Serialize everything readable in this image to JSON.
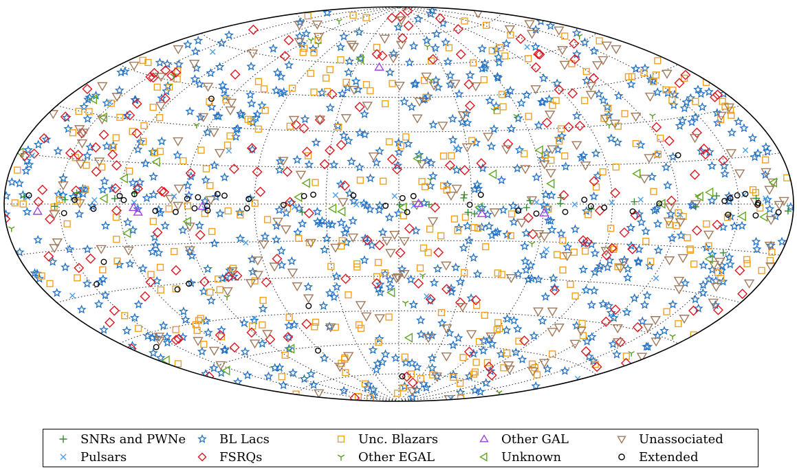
{
  "chart_data": {
    "type": "scatter",
    "projection": "hammer-aitoff all-sky map",
    "title": "",
    "grid": true,
    "legend": "bottom",
    "series": [
      {
        "key": "snr",
        "name": "SNRs and PWNe",
        "marker": "plus",
        "color": "#2e8b2e"
      },
      {
        "key": "psr",
        "name": "Pulsars",
        "marker": "x",
        "color": "#4a9fe8"
      },
      {
        "key": "bll",
        "name": "BL Lacs",
        "marker": "star",
        "color": "#1f6fc4"
      },
      {
        "key": "fsrq",
        "name": "FSRQs",
        "marker": "diamond",
        "color": "#e0141e"
      },
      {
        "key": "bcu",
        "name": "Unc. Blazars",
        "marker": "square",
        "color": "#f0a020"
      },
      {
        "key": "oegal",
        "name": "Other EGAL",
        "marker": "tri-y",
        "color": "#5a9a20"
      },
      {
        "key": "ogal",
        "name": "Other GAL",
        "marker": "triangle-up",
        "color": "#a040e0"
      },
      {
        "key": "unk",
        "name": "Unknown",
        "marker": "triangle-left",
        "color": "#60a820"
      },
      {
        "key": "unas",
        "name": "Unassociated",
        "marker": "triangle-down",
        "color": "#a0785a"
      },
      {
        "key": "ext",
        "name": "Extended",
        "marker": "circle",
        "color": "#000000"
      }
    ],
    "counts": {
      "snr": 24,
      "psr": 34,
      "bll": 640,
      "fsrq": 170,
      "bcu": 300,
      "oegal": 22,
      "ogal": 8,
      "unk": 32,
      "unas": 200,
      "ext": 55
    }
  },
  "legend": {
    "rows": [
      [
        "SNRs and PWNe",
        "BL Lacs",
        "Unc. Blazars",
        "Other GAL",
        "Unassociated"
      ],
      [
        "Pulsars",
        "FSRQs",
        "Other EGAL",
        "Unknown",
        "Extended"
      ]
    ]
  }
}
